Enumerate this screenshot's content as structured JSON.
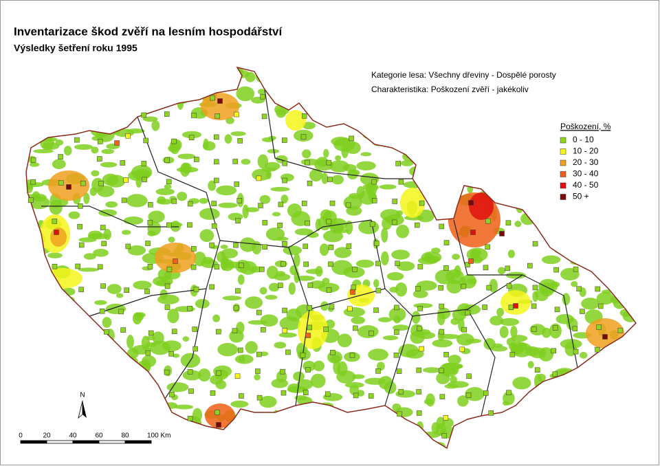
{
  "header": {
    "title": "Inventarizace škod zvěří na lesním hospodářství",
    "subtitle": "Výsledky šetření roku 1995"
  },
  "info": [
    "Kategorie lesa: Všechny dřeviny - Dospělé porosty",
    "Charakteristika: Poškození zvěří - jakékoliv"
  ],
  "legend": {
    "title": "Poškození, %",
    "items": [
      {
        "label": "0 - 10",
        "color": "#8fd41e"
      },
      {
        "label": "10 - 20",
        "color": "#f5f51a"
      },
      {
        "label": "20 - 30",
        "color": "#f0a020"
      },
      {
        "label": "30 - 40",
        "color": "#f06018"
      },
      {
        "label": "40 - 50",
        "color": "#e01010"
      },
      {
        "label": "50 +",
        "color": "#7a0a0a"
      }
    ]
  },
  "north": "N",
  "scale_bar": [
    "0",
    "20",
    "40",
    "60",
    "80",
    "100 Km"
  ]
}
